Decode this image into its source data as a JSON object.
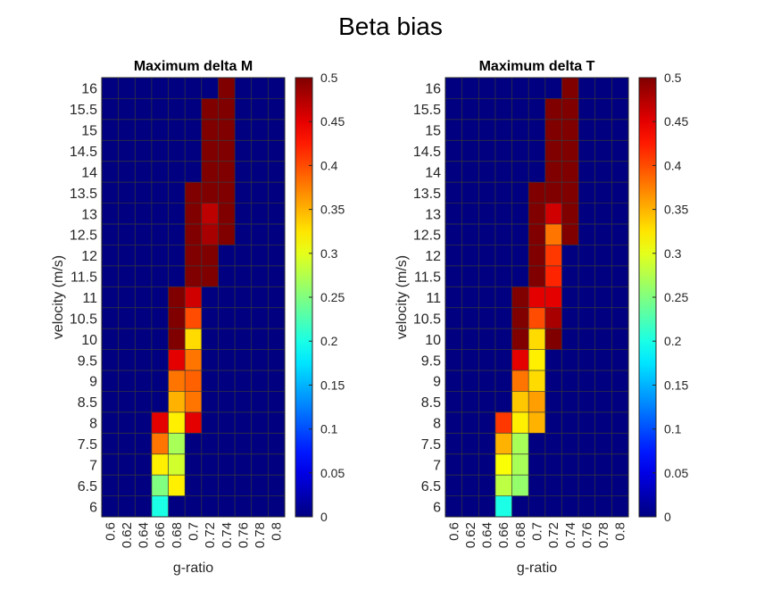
{
  "title": "Beta bias",
  "chart_data": [
    {
      "type": "heatmap",
      "title": "Maximum delta M",
      "xlabel": "g-ratio",
      "ylabel": "velocity (m/s)",
      "x": [
        "0.6",
        "0.62",
        "0.64",
        "0.66",
        "0.68",
        "0.7",
        "0.72",
        "0.74",
        "0.76",
        "0.78",
        "0.8"
      ],
      "y": [
        "6",
        "6.5",
        "7",
        "7.5",
        "8",
        "8.5",
        "9",
        "9.5",
        "10",
        "10.5",
        "11",
        "11.5",
        "12",
        "12.5",
        "13",
        "13.5",
        "14",
        "14.5",
        "15",
        "15.5",
        "16"
      ],
      "colorbar": {
        "min": 0,
        "max": 0.5,
        "ticks": [
          "0",
          "0.05",
          "0.1",
          "0.15",
          "0.2",
          "0.25",
          "0.3",
          "0.35",
          "0.4",
          "0.45",
          "0.5"
        ],
        "colormap": "jet"
      },
      "values": [
        [
          0,
          0,
          0,
          0.2,
          0,
          0,
          0,
          0,
          0,
          0,
          0
        ],
        [
          0,
          0,
          0,
          0.25,
          0.32,
          0,
          0,
          0,
          0,
          0,
          0
        ],
        [
          0,
          0,
          0,
          0.32,
          0.29,
          0,
          0,
          0,
          0,
          0,
          0
        ],
        [
          0,
          0,
          0,
          0.38,
          0.27,
          0,
          0,
          0,
          0,
          0,
          0
        ],
        [
          0,
          0,
          0,
          0.45,
          0.32,
          0.45,
          0,
          0,
          0,
          0,
          0
        ],
        [
          0,
          0,
          0,
          0,
          0.35,
          0.38,
          0,
          0,
          0,
          0,
          0
        ],
        [
          0,
          0,
          0,
          0,
          0.38,
          0.39,
          0,
          0,
          0,
          0,
          0
        ],
        [
          0,
          0,
          0,
          0,
          0.45,
          0.38,
          0,
          0,
          0,
          0,
          0
        ],
        [
          0,
          0,
          0,
          0,
          0.5,
          0.33,
          0,
          0,
          0,
          0,
          0
        ],
        [
          0,
          0,
          0,
          0,
          0.5,
          0.4,
          0,
          0,
          0,
          0,
          0
        ],
        [
          0,
          0,
          0,
          0,
          0.5,
          0.46,
          0,
          0,
          0,
          0,
          0
        ],
        [
          0,
          0,
          0,
          0,
          0,
          0.5,
          0.5,
          0,
          0,
          0,
          0
        ],
        [
          0,
          0,
          0,
          0,
          0,
          0.5,
          0.5,
          0,
          0,
          0,
          0
        ],
        [
          0,
          0,
          0,
          0,
          0,
          0.5,
          0.48,
          0.5,
          0,
          0,
          0
        ],
        [
          0,
          0,
          0,
          0,
          0,
          0.5,
          0.47,
          0.5,
          0,
          0,
          0
        ],
        [
          0,
          0,
          0,
          0,
          0,
          0.5,
          0.5,
          0.5,
          0,
          0,
          0
        ],
        [
          0,
          0,
          0,
          0,
          0,
          0,
          0.5,
          0.5,
          0,
          0,
          0
        ],
        [
          0,
          0,
          0,
          0,
          0,
          0,
          0.5,
          0.5,
          0,
          0,
          0
        ],
        [
          0,
          0,
          0,
          0,
          0,
          0,
          0.5,
          0.5,
          0,
          0,
          0
        ],
        [
          0,
          0,
          0,
          0,
          0,
          0,
          0.5,
          0.5,
          0,
          0,
          0
        ],
        [
          0,
          0,
          0,
          0,
          0,
          0,
          0,
          0.5,
          0,
          0,
          0
        ]
      ]
    },
    {
      "type": "heatmap",
      "title": "Maximum delta T",
      "xlabel": "g-ratio",
      "ylabel": "velocity (m/s)",
      "x": [
        "0.6",
        "0.62",
        "0.64",
        "0.66",
        "0.68",
        "0.7",
        "0.72",
        "0.74",
        "0.76",
        "0.78",
        "0.8"
      ],
      "y": [
        "6",
        "6.5",
        "7",
        "7.5",
        "8",
        "8.5",
        "9",
        "9.5",
        "10",
        "10.5",
        "11",
        "11.5",
        "12",
        "12.5",
        "13",
        "13.5",
        "14",
        "14.5",
        "15",
        "15.5",
        "16"
      ],
      "colorbar": {
        "min": 0,
        "max": 0.5,
        "ticks": [
          "0",
          "0.05",
          "0.1",
          "0.15",
          "0.2",
          "0.25",
          "0.3",
          "0.35",
          "0.4",
          "0.45",
          "0.5"
        ],
        "colormap": "jet"
      },
      "values": [
        [
          0,
          0,
          0,
          0.2,
          0,
          0,
          0,
          0,
          0,
          0,
          0
        ],
        [
          0,
          0,
          0,
          0.28,
          0.26,
          0,
          0,
          0,
          0,
          0,
          0
        ],
        [
          0,
          0,
          0,
          0.31,
          0.27,
          0,
          0,
          0,
          0,
          0,
          0
        ],
        [
          0,
          0,
          0,
          0.35,
          0.27,
          0,
          0,
          0,
          0,
          0,
          0
        ],
        [
          0,
          0,
          0,
          0.41,
          0.32,
          0.35,
          0,
          0,
          0,
          0,
          0
        ],
        [
          0,
          0,
          0,
          0,
          0.34,
          0.36,
          0,
          0,
          0,
          0,
          0
        ],
        [
          0,
          0,
          0,
          0,
          0.38,
          0.33,
          0,
          0,
          0,
          0,
          0
        ],
        [
          0,
          0,
          0,
          0,
          0.45,
          0.32,
          0,
          0,
          0,
          0,
          0
        ],
        [
          0,
          0,
          0,
          0,
          0.5,
          0.33,
          0.5,
          0,
          0,
          0,
          0
        ],
        [
          0,
          0,
          0,
          0,
          0.5,
          0.4,
          0.48,
          0,
          0,
          0,
          0
        ],
        [
          0,
          0,
          0,
          0,
          0.5,
          0.45,
          0.45,
          0,
          0,
          0,
          0
        ],
        [
          0,
          0,
          0,
          0,
          0,
          0.5,
          0.42,
          0,
          0,
          0,
          0
        ],
        [
          0,
          0,
          0,
          0,
          0,
          0.5,
          0.41,
          0,
          0,
          0,
          0
        ],
        [
          0,
          0,
          0,
          0,
          0,
          0.5,
          0.38,
          0.5,
          0,
          0,
          0
        ],
        [
          0,
          0,
          0,
          0,
          0,
          0.5,
          0.46,
          0.5,
          0,
          0,
          0
        ],
        [
          0,
          0,
          0,
          0,
          0,
          0.5,
          0.5,
          0.5,
          0,
          0,
          0
        ],
        [
          0,
          0,
          0,
          0,
          0,
          0,
          0.5,
          0.5,
          0,
          0,
          0
        ],
        [
          0,
          0,
          0,
          0,
          0,
          0,
          0.5,
          0.5,
          0,
          0,
          0
        ],
        [
          0,
          0,
          0,
          0,
          0,
          0,
          0.5,
          0.5,
          0,
          0,
          0
        ],
        [
          0,
          0,
          0,
          0,
          0,
          0,
          0.5,
          0.5,
          0,
          0,
          0
        ],
        [
          0,
          0,
          0,
          0,
          0,
          0,
          0,
          0.5,
          0,
          0,
          0
        ]
      ]
    }
  ]
}
